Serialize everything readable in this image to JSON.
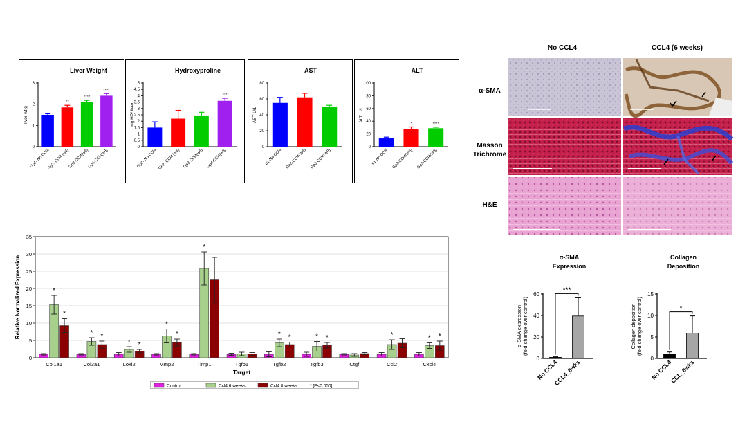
{
  "chart_data": [
    {
      "type": "bar",
      "title": "Liver Weight",
      "ylabel": "liver wt g",
      "ylim": [
        0,
        3
      ],
      "yticks": [
        0,
        1,
        2,
        3
      ],
      "categories": [
        "Gp1- No CCl4",
        "Gp2- CCl4 (w4)",
        "Gp3-CCl4(w6)",
        "Gp4-CCl4(w8)"
      ],
      "values": [
        1.5,
        1.85,
        2.1,
        2.4
      ],
      "errors": [
        0.05,
        0.1,
        0.08,
        0.1
      ],
      "sig": [
        "",
        "**",
        "****",
        "****"
      ],
      "colors": [
        "#0000ff",
        "#ff0000",
        "#00cc00",
        "#a020f0"
      ]
    },
    {
      "type": "bar",
      "title": "Hydroxyproline",
      "ylabel": "mg HP/ liver",
      "ylim": [
        0,
        5
      ],
      "yticks": [
        0,
        0.5,
        1,
        1.5,
        2,
        2.5,
        3,
        3.5,
        4,
        4.5,
        5
      ],
      "categories": [
        "Gp1- No CCl4",
        "Gp2- CCl4 (w4)",
        "Gp3-CCl4(w6)",
        "Gp4-CCl4(w8)"
      ],
      "values": [
        1.5,
        2.2,
        2.45,
        3.6
      ],
      "errors": [
        0.45,
        0.65,
        0.25,
        0.2
      ],
      "sig": [
        "",
        "",
        "",
        "***"
      ],
      "colors": [
        "#0000ff",
        "#ff0000",
        "#00cc00",
        "#a020f0"
      ]
    },
    {
      "type": "bar",
      "title": "AST",
      "ylabel": "AST U/L",
      "ylim": [
        0,
        80
      ],
      "yticks": [
        0,
        20,
        40,
        60,
        80
      ],
      "categories": [
        "p1-No CCl4",
        "Gp2-CCl4(W6)",
        "Gp3-CCl4(W8)"
      ],
      "values": [
        55,
        62,
        50
      ],
      "errors": [
        7,
        5,
        2
      ],
      "sig": [
        "",
        "",
        ""
      ],
      "colors": [
        "#0000ff",
        "#ff0000",
        "#00cc00"
      ]
    },
    {
      "type": "bar",
      "title": "ALT",
      "ylabel": "ALT U/L",
      "ylim": [
        0,
        100
      ],
      "yticks": [
        0,
        20,
        40,
        60,
        80,
        100
      ],
      "categories": [
        "p1-No CCl4",
        "Gp2-CCl4(W6)",
        "Gp3-CCl4(W8)"
      ],
      "values": [
        13,
        28,
        29
      ],
      "errors": [
        2,
        3,
        1.5
      ],
      "sig": [
        "",
        "*",
        "****"
      ],
      "colors": [
        "#0000ff",
        "#ff0000",
        "#00cc00"
      ]
    },
    {
      "type": "bar",
      "title": "",
      "xlabel": "Target",
      "ylabel": "Relative Normalized Expression",
      "ylim": [
        0,
        35
      ],
      "yticks": [
        0,
        5,
        10,
        15,
        20,
        25,
        30,
        35
      ],
      "grid": true,
      "categories": [
        "Col1a1",
        "Col3a1",
        "Loxl2",
        "Mmp2",
        "Timp1",
        "Tgfb1",
        "Tgfb2",
        "Tgfb3",
        "Ctgf",
        "Ccl2",
        "Cxcl4"
      ],
      "series": [
        {
          "name": "Control",
          "color": "#e020e0",
          "values": [
            1,
            1,
            1,
            1,
            1,
            1,
            1,
            1,
            1,
            1,
            1
          ],
          "errors": [
            0.2,
            0.2,
            0.5,
            0.2,
            0.2,
            0.3,
            0.7,
            0.6,
            0.2,
            0.5,
            0.5
          ],
          "sig": [
            "",
            "",
            "",
            "",
            "",
            "",
            "",
            "",
            "",
            "",
            ""
          ]
        },
        {
          "name": "Ccl4 6 weeks",
          "color": "#a8d08d",
          "values": [
            15.3,
            4.7,
            2.4,
            6.3,
            25.8,
            1.1,
            4.3,
            3.3,
            0.8,
            3.8,
            3.5
          ],
          "errors": [
            2.7,
            1.1,
            0.8,
            2.0,
            4.8,
            0.5,
            1.1,
            1.4,
            0.4,
            1.4,
            0.8
          ],
          "sig": [
            "*",
            "*",
            "*",
            "*",
            "*",
            "",
            "*",
            "*",
            "",
            "*",
            "*"
          ]
        },
        {
          "name": "Ccl4 8 weeks",
          "color": "#8b0000",
          "values": [
            9.3,
            3.8,
            1.9,
            4.4,
            22.5,
            1.1,
            3.8,
            3.6,
            1.2,
            4.2,
            3.5
          ],
          "errors": [
            2.0,
            1.0,
            0.5,
            1.0,
            6.5,
            0.4,
            0.7,
            0.8,
            0.3,
            1.3,
            1.3
          ],
          "sig": [
            "*",
            "*",
            "*",
            "*",
            "",
            "",
            "*",
            "*",
            "",
            "",
            "*"
          ]
        }
      ],
      "legend_note": "* [P<0.050]",
      "legend_position": "bottom"
    },
    {
      "type": "bar",
      "title": "α-SMA Expression",
      "ylabel": "α-SMA expression (fold change over control)",
      "ylim": [
        0,
        60
      ],
      "yticks": [
        0,
        20,
        40,
        60
      ],
      "categories": [
        "No CCL4",
        "CCL4_6wks"
      ],
      "values": [
        1,
        39.5
      ],
      "errors": [
        0.5,
        17
      ],
      "colors": [
        "#000000",
        "#a6a6a6"
      ],
      "bracket": "***"
    },
    {
      "type": "bar",
      "title": "Collagen Deposition",
      "ylabel": "Collagen deposition (fold change over control)",
      "ylim": [
        0,
        15
      ],
      "yticks": [
        0,
        5,
        10,
        15
      ],
      "categories": [
        "No CCL4",
        "CCL_6wks"
      ],
      "values": [
        1,
        5.9
      ],
      "errors": [
        0.5,
        4
      ],
      "colors": [
        "#000000",
        "#a6a6a6"
      ],
      "bracket": "*"
    }
  ],
  "histology": {
    "col_labels": [
      "No CCL4",
      "CCL4 (6 weeks)"
    ],
    "row_labels": [
      "α-SMA",
      "Masson Trichrome",
      "H&E"
    ]
  }
}
